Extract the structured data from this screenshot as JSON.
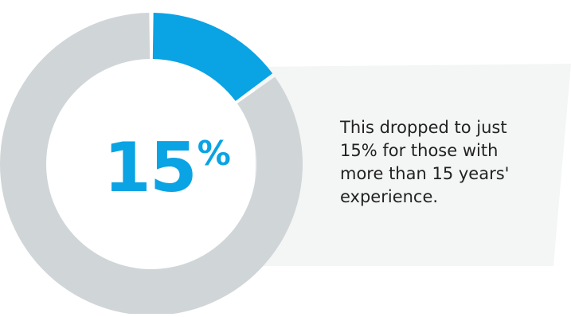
{
  "chart_data": {
    "type": "pie",
    "values": [
      15,
      85
    ],
    "colors": [
      "#0aa3e4",
      "#d0d5d8"
    ],
    "center_value": "15",
    "center_unit": "%"
  },
  "callout": {
    "text": "This dropped to just\n15% for those with\nmore than 15 years'\nexperience."
  },
  "colors": {
    "accent": "#0aa3e4",
    "remainder": "#d0d5d8",
    "panel": "#f4f5f5",
    "text": "#222222"
  }
}
